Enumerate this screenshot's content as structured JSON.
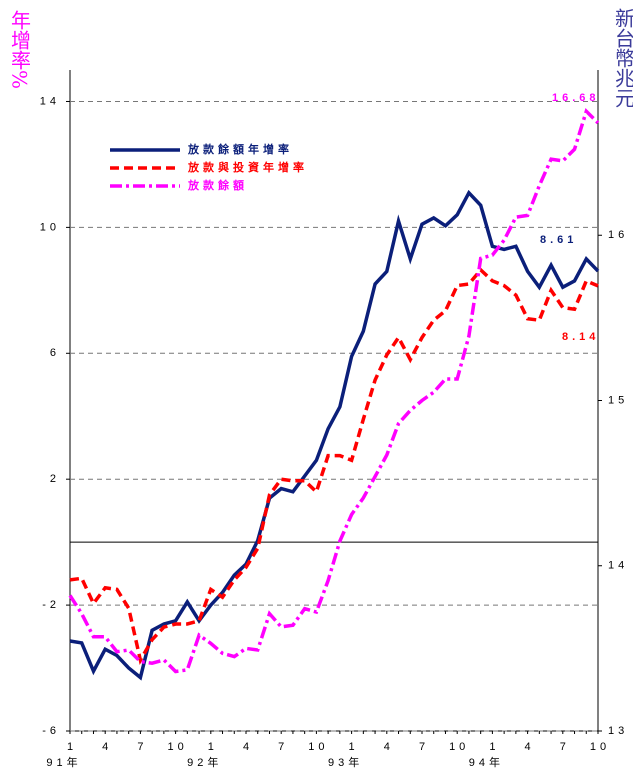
{
  "chart_data": {
    "type": "line",
    "y_label": "年增率%",
    "y2_label": "新台幣兆元",
    "categories": [
      "1",
      null,
      null,
      "4",
      null,
      null,
      "7",
      null,
      null,
      "10",
      null,
      null,
      "1",
      null,
      null,
      "4",
      null,
      null,
      "7",
      null,
      null,
      "10",
      null,
      null,
      "1",
      null,
      null,
      "4",
      null,
      null,
      "7",
      null,
      null,
      "10",
      null,
      null,
      "1",
      null,
      null,
      "4",
      null,
      null,
      "7",
      null,
      null,
      "10"
    ],
    "years": [
      "91年",
      "92年",
      "93年",
      "94年"
    ],
    "series": [
      {
        "name": "放款餘額年增率",
        "color": "#0b1f7a",
        "axis": "y",
        "style": "solid",
        "values": [
          -3.14,
          -3.2,
          -4.1,
          -3.4,
          -3.6,
          -4.0,
          -4.3,
          -2.8,
          -2.6,
          -2.5,
          -1.9,
          -2.5,
          -2.0,
          -1.6,
          -1.05,
          -0.7,
          0.05,
          1.4,
          1.7,
          1.6,
          2.1,
          2.6,
          3.6,
          4.3,
          5.9,
          6.7,
          8.2,
          8.6,
          10.2,
          9.0,
          10.1,
          10.3,
          10.05,
          10.4,
          11.1,
          10.7,
          9.4,
          9.3,
          9.4,
          8.6,
          8.1,
          8.8,
          8.1,
          8.3,
          9.0,
          8.61
        ]
      },
      {
        "name": "放款與投資年增率",
        "color": "#ff0000",
        "axis": "y",
        "style": "dash",
        "values": [
          -1.2,
          -1.15,
          -1.95,
          -1.45,
          -1.5,
          -2.1,
          -3.75,
          -3.1,
          -2.7,
          -2.6,
          -2.6,
          -2.5,
          -1.5,
          -1.75,
          -1.2,
          -0.8,
          -0.2,
          1.5,
          2.0,
          1.95,
          1.95,
          1.6,
          2.75,
          2.75,
          2.6,
          3.9,
          5.15,
          5.95,
          6.5,
          5.8,
          6.5,
          7.05,
          7.35,
          8.15,
          8.2,
          8.65,
          8.3,
          8.15,
          7.85,
          7.1,
          7.05,
          8.0,
          7.45,
          7.4,
          8.3,
          8.14
        ]
      },
      {
        "name": "放款餘額",
        "color": "#ff00ff",
        "axis": "y2",
        "style": "dashdot",
        "values": [
          13.82,
          13.71,
          13.57,
          13.57,
          13.48,
          13.49,
          13.42,
          13.41,
          13.43,
          13.36,
          13.37,
          13.58,
          13.53,
          13.47,
          13.45,
          13.5,
          13.49,
          13.71,
          13.63,
          13.64,
          13.74,
          13.72,
          13.91,
          14.15,
          14.31,
          14.41,
          14.54,
          14.67,
          14.86,
          14.94,
          15.0,
          15.05,
          15.13,
          15.13,
          15.39,
          15.86,
          15.88,
          15.97,
          16.11,
          16.12,
          16.3,
          16.46,
          16.45,
          16.52,
          16.75,
          16.68
        ]
      }
    ],
    "annotations": [
      {
        "text": "8.61",
        "series": 0,
        "color": "#0b1f7a"
      },
      {
        "text": "8.14",
        "series": 1,
        "color": "#ff0000"
      },
      {
        "text": "16.68",
        "series": 2,
        "color": "#ff00ff"
      }
    ],
    "ylim": [
      -6,
      15
    ],
    "yticks": [
      -6,
      -2,
      2,
      6,
      10,
      14
    ],
    "y2lim": [
      13,
      17
    ],
    "y2ticks": [
      13,
      14,
      15,
      16
    ],
    "grid": true
  }
}
